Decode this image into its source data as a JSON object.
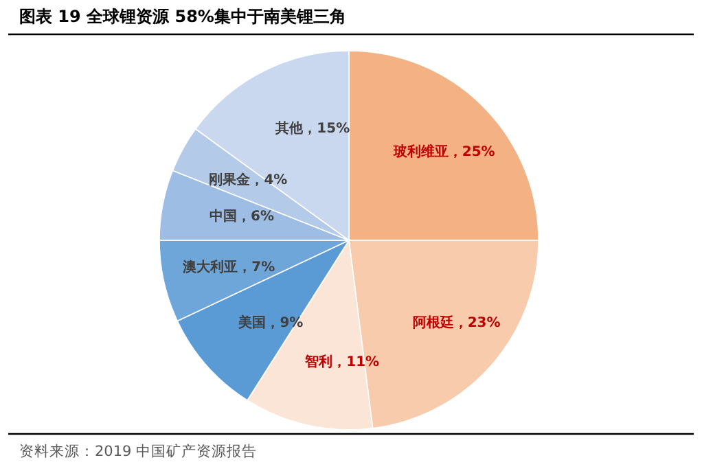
{
  "chart_data": {
    "type": "pie",
    "title": "图表 19 全球锂资源 58%集中于南美锂三角",
    "categories": [
      "玻利维亚",
      "阿根廷",
      "智利",
      "美国",
      "澳大利亚",
      "中国",
      "刚果金",
      "其他"
    ],
    "values": [
      25,
      23,
      11,
      9,
      7,
      6,
      4,
      15
    ],
    "colors": [
      "#f4b183",
      "#f8cbad",
      "#fbe5d6",
      "#5b9bd5",
      "#6fa6da",
      "#9dbde4",
      "#b4cae9",
      "#c9d8ef"
    ],
    "value_labels": [
      "，25%",
      "，23%",
      "，11%",
      "，9%",
      "，7%",
      "，6%",
      "，4%",
      "，15%"
    ],
    "annotations": [
      "资料来源：2019 中国矿产资源报告"
    ]
  }
}
